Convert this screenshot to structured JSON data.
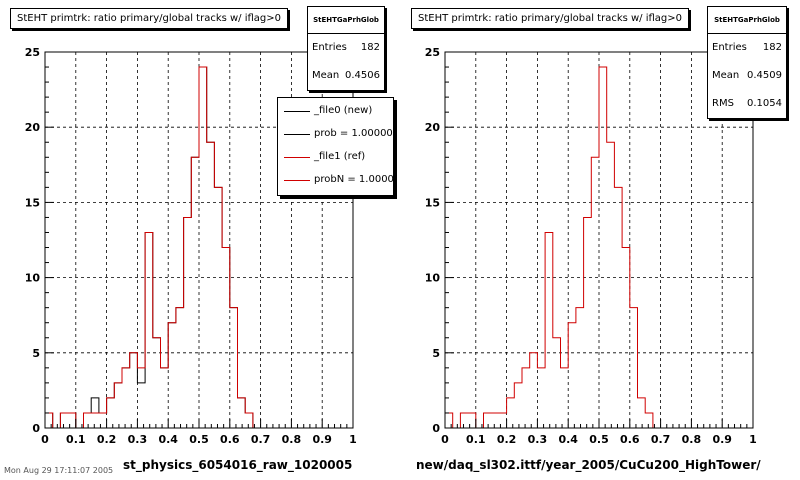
{
  "footer": "Mon Aug 29 17:11:07 2005",
  "chart_data": [
    {
      "type": "histogram",
      "title": "StEHT primtrk: ratio primary/global tracks w/ iflag>0",
      "xlabel": "st_physics_6054016_raw_1020005",
      "xlim": [
        0,
        1
      ],
      "ylim": [
        0,
        25
      ],
      "grid": true,
      "bin_width": 0.025,
      "x_ticks": [
        "0",
        "0.1",
        "0.2",
        "0.3",
        "0.4",
        "0.5",
        "0.6",
        "0.7",
        "0.8",
        "0.9",
        "1"
      ],
      "y_ticks": [
        "0",
        "5",
        "10",
        "15",
        "20",
        "25"
      ],
      "series": [
        {
          "name": "_file0 (new)",
          "color": "#000000",
          "values": [
            1,
            0,
            1,
            1,
            0,
            1,
            2,
            1,
            2,
            3,
            4,
            5,
            3,
            13,
            6,
            4,
            7,
            8,
            14,
            18,
            24,
            19,
            16,
            12,
            8,
            2,
            1,
            0,
            0,
            0,
            0,
            0,
            0,
            0,
            0,
            0,
            0,
            0,
            0,
            0
          ]
        },
        {
          "name": "_file1 (ref)",
          "color": "#d00000",
          "values": [
            1,
            0,
            1,
            1,
            0,
            1,
            1,
            1,
            2,
            3,
            4,
            5,
            4,
            13,
            6,
            4,
            7,
            8,
            14,
            18,
            24,
            19,
            16,
            12,
            8,
            2,
            1,
            0,
            0,
            0,
            0,
            0,
            0,
            0,
            0,
            0,
            0,
            0,
            0,
            0
          ]
        }
      ],
      "stats": {
        "name": "StEHTGaPrhGlob",
        "entries_label": "Entries",
        "entries": "182",
        "mean_label": "Mean",
        "mean": "0.4506"
      },
      "legend": [
        "_file0 (new)",
        "prob = 1.000000",
        "_file1 (ref)",
        "probN = 1.000000"
      ],
      "legend_colors": [
        "#000000",
        "#000000",
        "#d00000",
        "#d00000"
      ]
    },
    {
      "type": "histogram",
      "title": "StEHT primtrk: ratio primary/global tracks w/ iflag>0",
      "xlabel": "new/daq_sl302.ittf/year_2005/CuCu200_HighTower/",
      "xlim": [
        0,
        1
      ],
      "ylim": [
        0,
        25
      ],
      "grid": true,
      "bin_width": 0.025,
      "x_ticks": [
        "0",
        "0.1",
        "0.2",
        "0.3",
        "0.4",
        "0.5",
        "0.6",
        "0.7",
        "0.8",
        "0.9",
        "1"
      ],
      "y_ticks": [
        "0",
        "5",
        "10",
        "15",
        "20",
        "25"
      ],
      "series": [
        {
          "name": "",
          "color": "#d00000",
          "values": [
            1,
            0,
            1,
            1,
            0,
            1,
            1,
            1,
            2,
            3,
            4,
            5,
            4,
            13,
            6,
            4,
            7,
            8,
            14,
            18,
            24,
            19,
            16,
            12,
            8,
            2,
            1,
            0,
            0,
            0,
            0,
            0,
            0,
            0,
            0,
            0,
            0,
            0,
            0,
            0
          ]
        }
      ],
      "stats": {
        "name": "StEHTGaPrhGlob",
        "entries_label": "Entries",
        "entries": "182",
        "mean_label": "Mean",
        "mean": "0.4509",
        "rms_label": "RMS",
        "rms": "0.1054"
      }
    }
  ]
}
